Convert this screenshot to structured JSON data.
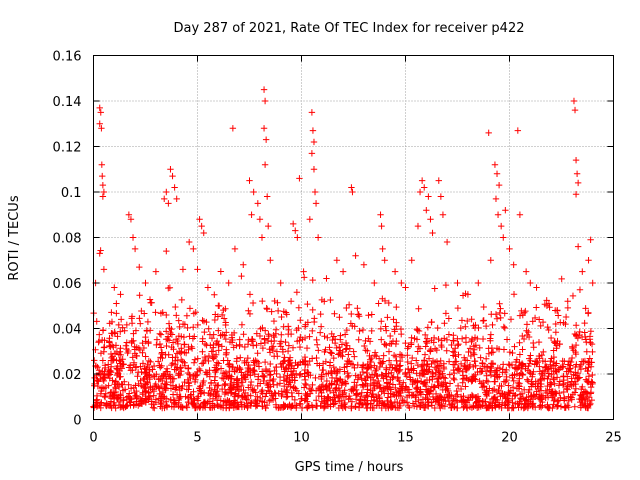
{
  "chart_data": {
    "type": "scatter",
    "title": "Day 287 of 2021, Rate Of TEC Index for receiver p422",
    "xlabel": "GPS time / hours",
    "ylabel": "ROTI / TECUs",
    "xlim": [
      0,
      25
    ],
    "ylim": [
      0,
      0.16
    ],
    "xticks": [
      0,
      5,
      10,
      15,
      20,
      25
    ],
    "xtick_labels": [
      "0",
      "5",
      "10",
      "15",
      "20",
      "25"
    ],
    "yticks": [
      0,
      0.02,
      0.04,
      0.06,
      0.08,
      0.1,
      0.12,
      0.14,
      0.16
    ],
    "ytick_labels": [
      "0",
      "0.02",
      "0.04",
      "0.06",
      "0.08",
      "0.1",
      "0.12",
      "0.14",
      "0.16"
    ],
    "grid": true,
    "marker": "+",
    "marker_color": "#ff0000",
    "data_extent_hours": [
      0,
      24
    ],
    "baseline_range": [
      0.005,
      0.02
    ],
    "series": [
      {
        "name": "ROTI",
        "points": [
          [
            0.3,
            0.137
          ],
          [
            0.35,
            0.135
          ],
          [
            0.3,
            0.13
          ],
          [
            0.38,
            0.128
          ],
          [
            0.4,
            0.112
          ],
          [
            0.42,
            0.107
          ],
          [
            0.45,
            0.103
          ],
          [
            0.5,
            0.1
          ],
          [
            0.45,
            0.098
          ],
          [
            0.3,
            0.073
          ],
          [
            0.1,
            0.06
          ],
          [
            0.5,
            0.066
          ],
          [
            1.0,
            0.058
          ],
          [
            1.3,
            0.055
          ],
          [
            1.7,
            0.09
          ],
          [
            1.8,
            0.088
          ],
          [
            1.9,
            0.08
          ],
          [
            2.0,
            0.075
          ],
          [
            2.2,
            0.067
          ],
          [
            2.5,
            0.06
          ],
          [
            3.0,
            0.065
          ],
          [
            3.4,
            0.097
          ],
          [
            3.5,
            0.1
          ],
          [
            3.6,
            0.095
          ],
          [
            3.7,
            0.11
          ],
          [
            3.8,
            0.107
          ],
          [
            3.9,
            0.102
          ],
          [
            4.0,
            0.097
          ],
          [
            3.5,
            0.074
          ],
          [
            4.3,
            0.066
          ],
          [
            4.6,
            0.078
          ],
          [
            4.8,
            0.075
          ],
          [
            5.1,
            0.088
          ],
          [
            5.2,
            0.085
          ],
          [
            5.3,
            0.082
          ],
          [
            5.0,
            0.066
          ],
          [
            5.5,
            0.058
          ],
          [
            6.0,
            0.05
          ],
          [
            6.5,
            0.06
          ],
          [
            6.7,
            0.128
          ],
          [
            6.8,
            0.075
          ],
          [
            7.2,
            0.068
          ],
          [
            7.5,
            0.105
          ],
          [
            7.7,
            0.1
          ],
          [
            7.6,
            0.09
          ],
          [
            7.9,
            0.095
          ],
          [
            8.0,
            0.088
          ],
          [
            8.1,
            0.08
          ],
          [
            8.2,
            0.145
          ],
          [
            8.25,
            0.14
          ],
          [
            8.2,
            0.128
          ],
          [
            8.3,
            0.123
          ],
          [
            8.25,
            0.112
          ],
          [
            8.35,
            0.098
          ],
          [
            8.4,
            0.085
          ],
          [
            8.5,
            0.07
          ],
          [
            9.0,
            0.06
          ],
          [
            9.5,
            0.052
          ],
          [
            9.6,
            0.086
          ],
          [
            9.7,
            0.083
          ],
          [
            9.8,
            0.08
          ],
          [
            9.9,
            0.106
          ],
          [
            10.1,
            0.065
          ],
          [
            10.5,
            0.135
          ],
          [
            10.55,
            0.127
          ],
          [
            10.6,
            0.122
          ],
          [
            10.5,
            0.117
          ],
          [
            10.6,
            0.11
          ],
          [
            10.65,
            0.1
          ],
          [
            10.7,
            0.095
          ],
          [
            10.4,
            0.088
          ],
          [
            10.8,
            0.08
          ],
          [
            11.2,
            0.062
          ],
          [
            11.7,
            0.07
          ],
          [
            12.0,
            0.065
          ],
          [
            12.4,
            0.102
          ],
          [
            12.45,
            0.1
          ],
          [
            12.6,
            0.072
          ],
          [
            13.0,
            0.068
          ],
          [
            13.5,
            0.06
          ],
          [
            13.8,
            0.09
          ],
          [
            13.85,
            0.085
          ],
          [
            13.9,
            0.075
          ],
          [
            14.0,
            0.07
          ],
          [
            14.5,
            0.065
          ],
          [
            14.8,
            0.06
          ],
          [
            15.0,
            0.058
          ],
          [
            15.3,
            0.07
          ],
          [
            15.6,
            0.085
          ],
          [
            15.7,
            0.1
          ],
          [
            15.8,
            0.105
          ],
          [
            15.9,
            0.102
          ],
          [
            16.0,
            0.092
          ],
          [
            16.1,
            0.098
          ],
          [
            16.2,
            0.088
          ],
          [
            16.3,
            0.082
          ],
          [
            16.6,
            0.105
          ],
          [
            16.7,
            0.098
          ],
          [
            16.8,
            0.09
          ],
          [
            17.0,
            0.078
          ],
          [
            17.5,
            0.06
          ],
          [
            18.0,
            0.055
          ],
          [
            18.5,
            0.06
          ],
          [
            19.0,
            0.126
          ],
          [
            19.1,
            0.07
          ],
          [
            19.3,
            0.112
          ],
          [
            19.4,
            0.108
          ],
          [
            19.5,
            0.103
          ],
          [
            19.35,
            0.097
          ],
          [
            19.45,
            0.09
          ],
          [
            19.6,
            0.085
          ],
          [
            19.7,
            0.08
          ],
          [
            19.8,
            0.092
          ],
          [
            20.0,
            0.075
          ],
          [
            20.2,
            0.068
          ],
          [
            20.4,
            0.127
          ],
          [
            20.5,
            0.09
          ],
          [
            20.8,
            0.065
          ],
          [
            21.0,
            0.06
          ],
          [
            21.3,
            0.058
          ],
          [
            21.8,
            0.05
          ],
          [
            22.3,
            0.048
          ],
          [
            22.8,
            0.052
          ],
          [
            23.1,
            0.14
          ],
          [
            23.15,
            0.136
          ],
          [
            23.2,
            0.114
          ],
          [
            23.25,
            0.108
          ],
          [
            23.3,
            0.104
          ],
          [
            23.2,
            0.099
          ],
          [
            23.3,
            0.076
          ],
          [
            23.5,
            0.065
          ],
          [
            23.8,
            0.07
          ],
          [
            23.9,
            0.079
          ],
          [
            24.0,
            0.06
          ]
        ]
      }
    ]
  }
}
